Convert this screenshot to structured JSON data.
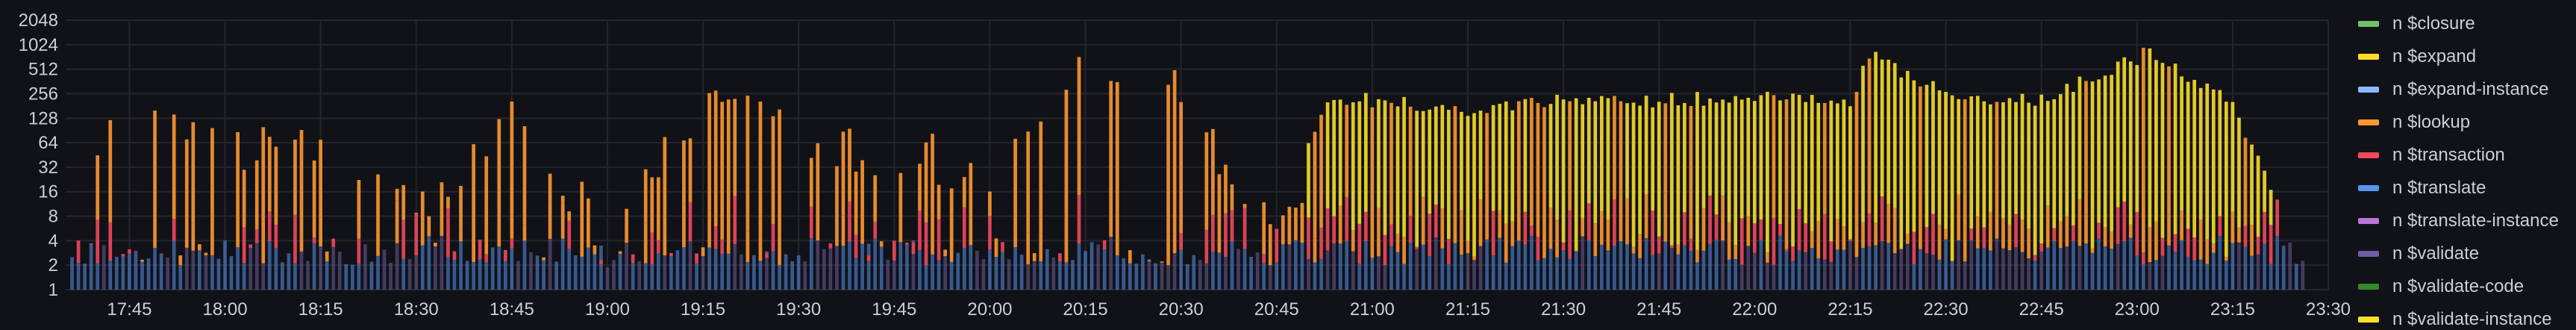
{
  "chart_data": {
    "type": "bar",
    "stacked": true,
    "y_scale": "log2",
    "ylim": [
      1,
      2048
    ],
    "y_ticks": [
      "1",
      "2",
      "4",
      "8",
      "16",
      "32",
      "64",
      "128",
      "256",
      "512",
      "1024",
      "2048"
    ],
    "x_ticks": [
      "17:45",
      "18:00",
      "18:15",
      "18:30",
      "18:45",
      "19:00",
      "19:15",
      "19:30",
      "19:45",
      "20:00",
      "20:15",
      "20:30",
      "20:45",
      "21:00",
      "21:15",
      "21:30",
      "21:45",
      "22:00",
      "22:15",
      "22:30",
      "22:45",
      "23:00",
      "23:15",
      "23:30"
    ],
    "x_start": "17:35",
    "x_end": "23:30",
    "interval_minutes": 1,
    "grid": true,
    "legend_position": "right",
    "series": [
      {
        "name": "n $closure",
        "color": "#73bf69"
      },
      {
        "name": "n $expand",
        "color": "#fade2a"
      },
      {
        "name": "n $expand-instance",
        "color": "#8ab8ff"
      },
      {
        "name": "n $lookup",
        "color": "#ff9830"
      },
      {
        "name": "n $transaction",
        "color": "#f2495c"
      },
      {
        "name": "n $translate",
        "color": "#5794f2"
      },
      {
        "name": "n $translate-instance",
        "color": "#b877d9"
      },
      {
        "name": "n $validate",
        "color": "#705da0"
      },
      {
        "name": "n $validate-code",
        "color": "#37872d"
      },
      {
        "name": "n $validate-instance",
        "color": "#fade2a"
      }
    ],
    "totals_by_time": [
      {
        "time": "17:36",
        "value": 128
      },
      {
        "time": "17:45",
        "value": 256
      },
      {
        "time": "18:00",
        "value": 128
      },
      {
        "time": "18:12",
        "value": 150
      },
      {
        "time": "18:30",
        "value": 16
      },
      {
        "time": "18:46",
        "value": 256
      },
      {
        "time": "19:00",
        "value": 8
      },
      {
        "time": "19:15",
        "value": 512
      },
      {
        "time": "19:30",
        "value": 128
      },
      {
        "time": "19:45",
        "value": 100
      },
      {
        "time": "20:00",
        "value": 64
      },
      {
        "time": "20:14",
        "value": 1024
      },
      {
        "time": "20:30",
        "value": 512
      },
      {
        "time": "20:45",
        "value": 8
      },
      {
        "time": "20:53",
        "value": 300
      },
      {
        "time": "21:00",
        "value": 256
      },
      {
        "time": "21:15",
        "value": 200
      },
      {
        "time": "21:30",
        "value": 256
      },
      {
        "time": "21:45",
        "value": 256
      },
      {
        "time": "22:00",
        "value": 300
      },
      {
        "time": "22:15",
        "value": 256
      },
      {
        "time": "22:18",
        "value": 1024
      },
      {
        "time": "22:30",
        "value": 300
      },
      {
        "time": "22:45",
        "value": 256
      },
      {
        "time": "23:02",
        "value": 1024
      },
      {
        "time": "23:15",
        "value": 256
      },
      {
        "time": "23:25",
        "value": 4
      }
    ]
  }
}
